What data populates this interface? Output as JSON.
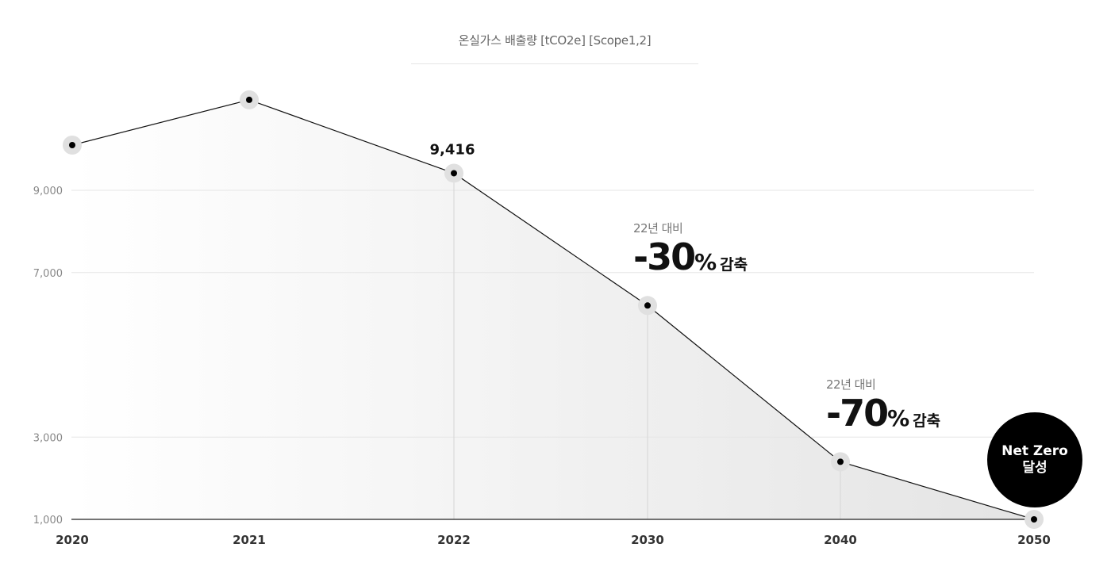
{
  "chart_data": {
    "type": "area",
    "title": "온실가스 배출량 [tCO2e] [Scope1,2]",
    "categories": [
      "2020",
      "2021",
      "2022",
      "2030",
      "2040",
      "2050"
    ],
    "values": [
      10100,
      11200,
      9416,
      6200,
      2400,
      1000
    ],
    "y_ticks": [
      {
        "value": 1000,
        "label": "1,000"
      },
      {
        "value": 3000,
        "label": "3,000"
      },
      {
        "value": 7000,
        "label": "7,000"
      },
      {
        "value": 9000,
        "label": "9,000"
      }
    ],
    "ylim": [
      1000,
      11700
    ],
    "grid": true,
    "data_labels": [
      {
        "category": "2022",
        "label": "9,416"
      }
    ],
    "annotations": [
      {
        "category": "2030",
        "sub": "22년 대비",
        "value": "-30",
        "unit": "%",
        "word": "감축"
      },
      {
        "category": "2040",
        "sub": "22년 대비",
        "value": "-70",
        "unit": "%",
        "word": "감축"
      }
    ],
    "badge": {
      "category": "2050",
      "line1": "Net Zero",
      "line2": "달성"
    },
    "colors": {
      "line": "#111111",
      "point": "#000000",
      "halo": "#e0e0e0",
      "grid": "#e5e5e5",
      "axis": "#222222",
      "area_start": "#ffffff",
      "area_end": "#e4e4e4"
    }
  }
}
